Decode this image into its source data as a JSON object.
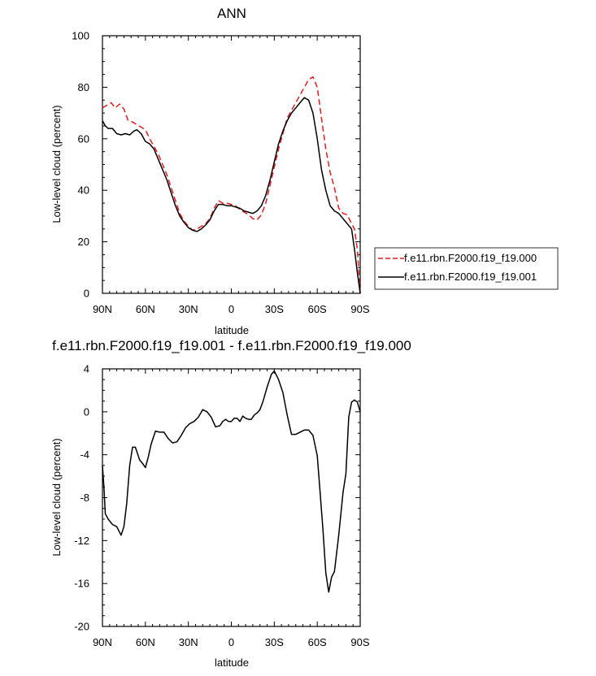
{
  "chart_data": [
    {
      "type": "line",
      "title": "ANN",
      "xlabel": "latitude",
      "ylabel": "Low-level cloud (percent)",
      "xlim": [
        90,
        -90
      ],
      "ylim": [
        0,
        100
      ],
      "xticks": [
        90,
        60,
        30,
        0,
        -30,
        -60,
        -90
      ],
      "xtick_labels": [
        "90N",
        "60N",
        "30N",
        "0",
        "30S",
        "60S",
        "90S"
      ],
      "yticks": [
        0,
        20,
        40,
        60,
        80,
        100
      ],
      "ytick_labels": [
        "0",
        "20",
        "40",
        "60",
        "80",
        "100"
      ],
      "legend_position": "right",
      "series": [
        {
          "name": "f.e11.rbn.F2000.f19_f19.000",
          "color": "#e31a1c",
          "dash": "dashed",
          "x": [
            90,
            87,
            84,
            81,
            78,
            75,
            72,
            69,
            66,
            63,
            60,
            57,
            54,
            51,
            48,
            45,
            42,
            39,
            36,
            33,
            30,
            27,
            24,
            21,
            18,
            15,
            12,
            9,
            6,
            3,
            0,
            -3,
            -6,
            -9,
            -12,
            -15,
            -18,
            -21,
            -24,
            -27,
            -30,
            -33,
            -36,
            -39,
            -42,
            -45,
            -48,
            -51,
            -54,
            -57,
            -60,
            -63,
            -66,
            -69,
            -72,
            -75,
            -78,
            -81,
            -84,
            -86,
            -88,
            -90
          ],
          "y": [
            72,
            73,
            74,
            72,
            73.5,
            71.5,
            67,
            66.5,
            65.5,
            64.5,
            63.5,
            60,
            57,
            54,
            50,
            46,
            41,
            36,
            31,
            28,
            26,
            24.5,
            25,
            26,
            27,
            29,
            33,
            36,
            35,
            35,
            34.5,
            34,
            32.5,
            31.5,
            30.5,
            29,
            28.5,
            30.5,
            35,
            42,
            49,
            56,
            62,
            68,
            71,
            74,
            77,
            80,
            83,
            84,
            80,
            68,
            56,
            47,
            41,
            33,
            31,
            30.5,
            27,
            25,
            17,
            0
          ]
        },
        {
          "name": "f.e11.rbn.F2000.f19_f19.001",
          "color": "#000000",
          "dash": "solid",
          "x": [
            90,
            88,
            86,
            83,
            80,
            77,
            74,
            71,
            68,
            66,
            63,
            60,
            57,
            54,
            51,
            48,
            45,
            42,
            39,
            36,
            33,
            30,
            27,
            24,
            21,
            18,
            15,
            12,
            9,
            6,
            3,
            0,
            -3,
            -6,
            -9,
            -12,
            -15,
            -18,
            -21,
            -24,
            -27,
            -30,
            -33,
            -36,
            -39,
            -42,
            -45,
            -48,
            -51,
            -54,
            -57,
            -60,
            -63,
            -66,
            -69,
            -72,
            -75,
            -78,
            -81,
            -84,
            -86,
            -88,
            -90
          ],
          "y": [
            67,
            65,
            64,
            64,
            62,
            61.5,
            62,
            61.5,
            63,
            63.5,
            62,
            59,
            58,
            56,
            52,
            48,
            44,
            39,
            34,
            30,
            27.5,
            25.5,
            24.5,
            24,
            25,
            26.5,
            28.5,
            32,
            34.5,
            34.5,
            34,
            34,
            33.5,
            33,
            32,
            31.5,
            31,
            32,
            34,
            38,
            44,
            51,
            58,
            63,
            67,
            70,
            72,
            74,
            76,
            75,
            70,
            60,
            48,
            40,
            34,
            32,
            31,
            29,
            27,
            25,
            17,
            8,
            0
          ]
        }
      ]
    },
    {
      "type": "line",
      "title": "f.e11.rbn.F2000.f19_f19.001 - f.e11.rbn.F2000.f19_f19.000",
      "xlabel": "latitude",
      "ylabel": "Low-level cloud (percent)",
      "xlim": [
        90,
        -90
      ],
      "ylim": [
        -20,
        4
      ],
      "xticks": [
        90,
        60,
        30,
        0,
        -30,
        -60,
        -90
      ],
      "xtick_labels": [
        "90N",
        "60N",
        "30N",
        "0",
        "30S",
        "60S",
        "90S"
      ],
      "yticks": [
        4,
        0,
        -4,
        -8,
        -12,
        -16,
        -20
      ],
      "ytick_labels": [
        "4",
        "0",
        "-4",
        "-8",
        "-12",
        "-16",
        "-20"
      ],
      "series": [
        {
          "color": "#000000",
          "dash": "solid",
          "x": [
            90,
            89,
            88,
            86,
            83,
            80,
            77,
            75,
            73,
            71,
            69,
            67,
            64,
            62,
            60,
            58,
            56,
            53,
            50,
            47,
            44,
            41,
            38,
            35,
            32,
            29,
            26,
            23,
            20,
            17,
            14,
            11,
            8,
            6,
            4,
            2,
            0,
            -2,
            -4,
            -6,
            -8,
            -10,
            -12,
            -14,
            -16,
            -18,
            -20,
            -22,
            -25,
            -28,
            -30,
            -33,
            -36,
            -39,
            -42,
            -45,
            -48,
            -51,
            -54,
            -57,
            -60,
            -62,
            -64,
            -66,
            -68,
            -70,
            -72,
            -75,
            -78,
            -80,
            -82,
            -84,
            -86,
            -88,
            -90
          ],
          "y": [
            -5,
            -7,
            -9.5,
            -10,
            -10.5,
            -10.7,
            -11.5,
            -10.7,
            -8.5,
            -5,
            -3.3,
            -3.3,
            -4.5,
            -4.8,
            -5.2,
            -4.2,
            -3,
            -1.8,
            -1.9,
            -1.9,
            -2.5,
            -2.9,
            -2.8,
            -2.2,
            -1.5,
            -1.1,
            -0.9,
            -0.5,
            0.2,
            0,
            -0.5,
            -1.4,
            -1.3,
            -0.9,
            -0.7,
            -0.9,
            -0.9,
            -0.6,
            -0.6,
            -0.9,
            -0.4,
            -0.6,
            -0.7,
            -0.7,
            -0.3,
            -0.1,
            0.2,
            0.9,
            2.3,
            3.5,
            3.8,
            3,
            1.8,
            -0.3,
            -2.1,
            -2.1,
            -1.9,
            -1.7,
            -1.7,
            -2.2,
            -4.1,
            -7.5,
            -11,
            -15,
            -16.8,
            -15.4,
            -14.9,
            -11.5,
            -7.5,
            -5.8,
            -0.5,
            0.9,
            1.1,
            0.9,
            0
          ]
        }
      ]
    }
  ]
}
